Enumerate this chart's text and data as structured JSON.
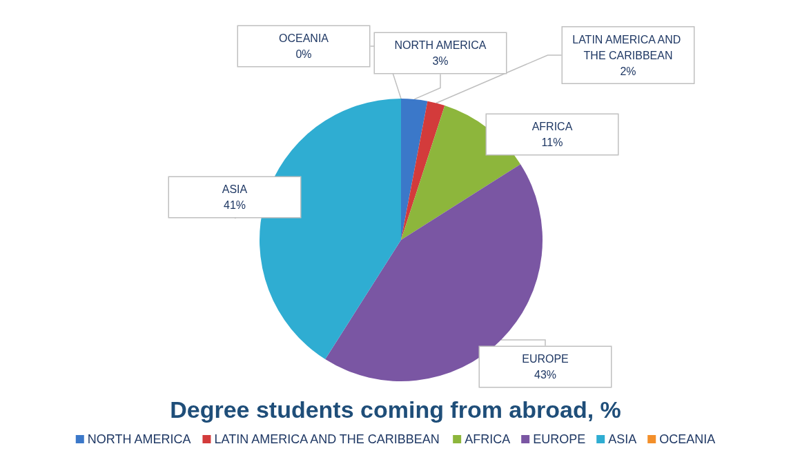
{
  "chart_data": {
    "type": "pie",
    "title": "Degree students coming from abroad, %",
    "categories": [
      "NORTH AMERICA",
      "LATIN AMERICA AND THE CARIBBEAN",
      "AFRICA",
      "EUROPE",
      "ASIA",
      "OCEANIA"
    ],
    "values": [
      3,
      2,
      11,
      43,
      41,
      0
    ],
    "value_labels": [
      "3%",
      "2%",
      "11%",
      "43%",
      "41%",
      "0%"
    ],
    "colors": [
      "#3b78c9",
      "#d33b3b",
      "#8db63c",
      "#7a56a3",
      "#2fadd2",
      "#f38f2a"
    ],
    "legend": "bottom"
  }
}
